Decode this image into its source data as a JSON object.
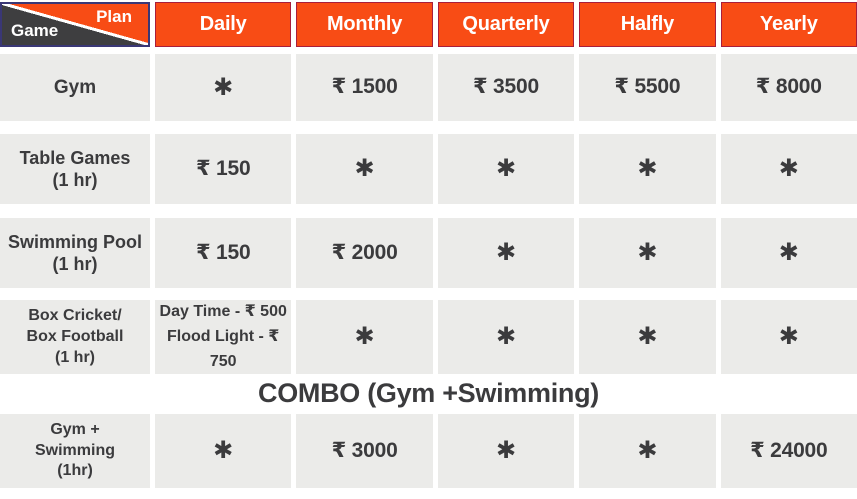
{
  "header": {
    "corner_top": "Plan",
    "corner_bottom": "Game",
    "columns": [
      "Daily",
      "Monthly",
      "Quarterly",
      "Halfly",
      "Yearly"
    ]
  },
  "rows": [
    {
      "name_lines": [
        "Gym"
      ],
      "cells": [
        "✱",
        "₹ 1500",
        "₹ 3500",
        "₹ 5500",
        "₹ 8000"
      ]
    },
    {
      "name_lines": [
        "Table Games",
        "(1 hr)"
      ],
      "cells": [
        "₹ 150",
        "✱",
        "✱",
        "✱",
        "✱"
      ]
    },
    {
      "name_lines": [
        "Swimming Pool",
        "(1 hr)"
      ],
      "cells": [
        "₹ 150",
        "₹ 2000",
        "✱",
        "✱",
        "✱"
      ]
    },
    {
      "name_lines": [
        "Box Cricket/",
        "Box Football",
        "(1 hr)"
      ],
      "cells": [
        [
          "Day Time - ₹ 500",
          "Flood Light - ₹ 750"
        ],
        "✱",
        "✱",
        "✱",
        "✱"
      ]
    }
  ],
  "combo": {
    "heading": "COMBO (Gym +Swimming)",
    "row": {
      "name_lines": [
        "Gym +",
        "Swimming",
        "(1hr)"
      ],
      "cells": [
        "✱",
        "₹ 3000",
        "✱",
        "✱",
        "₹ 24000"
      ]
    }
  },
  "colors": {
    "accent_orange": "#f84c15",
    "header_border": "#a81e3c",
    "corner_dark": "#3e3e40",
    "corner_border": "#3a3776",
    "cell_background": "#ebebe9",
    "text_dark": "#3b3b3d",
    "header_text": "#ffffff"
  }
}
